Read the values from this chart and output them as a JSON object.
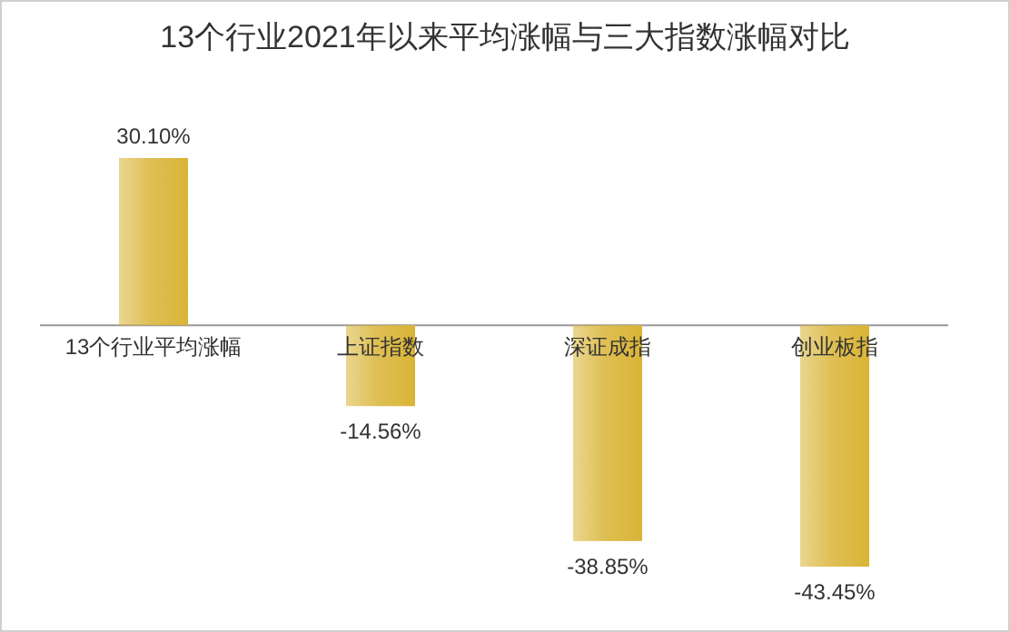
{
  "chart_data": {
    "type": "bar",
    "title": "13个行业2021年以来平均涨幅与三大指数涨幅对比",
    "categories": [
      "13个行业平均涨幅",
      "上证指数",
      "深证成指",
      "创业板指"
    ],
    "values": [
      30.1,
      -14.56,
      -38.85,
      -43.45
    ],
    "value_labels": [
      "30.10%",
      "-14.56%",
      "-38.85%",
      "-43.45%"
    ],
    "color": "#d9b436"
  }
}
